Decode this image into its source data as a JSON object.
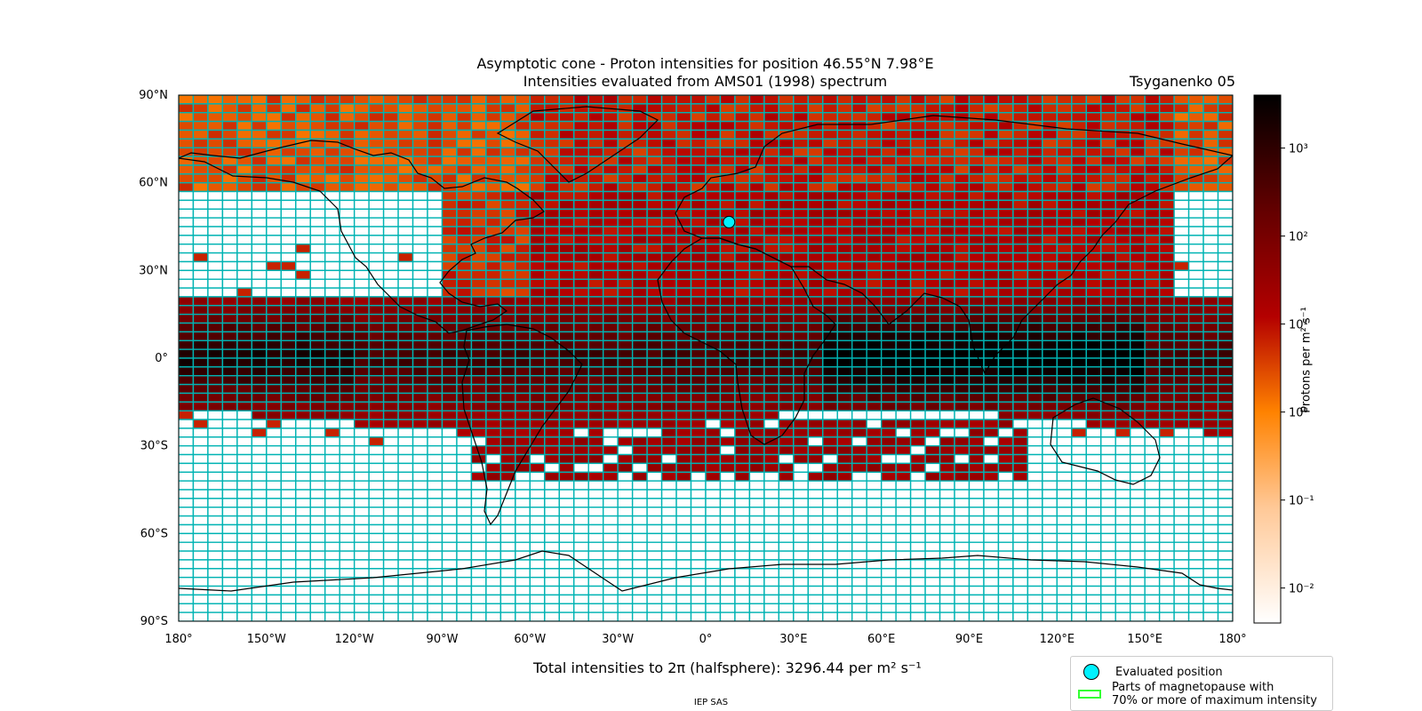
{
  "title_line1": "Asymptotic cone - Proton intensities for position 46.55°N 7.98°E",
  "title_line2": "Intensities evaluated from AMS01 (1998) spectrum",
  "model": "Tsyganenko 05",
  "axes": {
    "lat_ticks": [
      "90°N",
      "60°N",
      "30°N",
      "0°",
      "30°S",
      "60°S",
      "90°S"
    ],
    "lon_ticks": [
      "180°",
      "150°W",
      "120°W",
      "90°W",
      "60°W",
      "30°W",
      "0°",
      "30°E",
      "60°E",
      "90°E",
      "120°E",
      "150°E",
      "180°"
    ]
  },
  "evaluated_position": {
    "lat": 46.55,
    "lon": 7.98
  },
  "colorbar": {
    "label": "Protons per m² s⁻¹",
    "ticks": [
      "10³",
      "10²",
      "10¹",
      "10⁰",
      "10⁻¹",
      "10⁻²"
    ],
    "scale": "log",
    "range": [
      0.004,
      4000
    ]
  },
  "footer_total": "Total intensities to 2π (halfsphere): 3296.44 per m² s⁻¹",
  "credit": "IEP SAS",
  "legend": {
    "item1": "Evaluated position",
    "item2_line1": "Parts of magnetopause with",
    "item2_line2": "70% or more of maximum intensity"
  },
  "colors": {
    "grid": "#00b3b3",
    "position_marker": "#00f2ff",
    "magnetopause": "#33ff33",
    "colormap": [
      "#ffffff",
      "#ffc896",
      "#ff8200",
      "#b40000",
      "#640000",
      "#000000"
    ]
  }
}
